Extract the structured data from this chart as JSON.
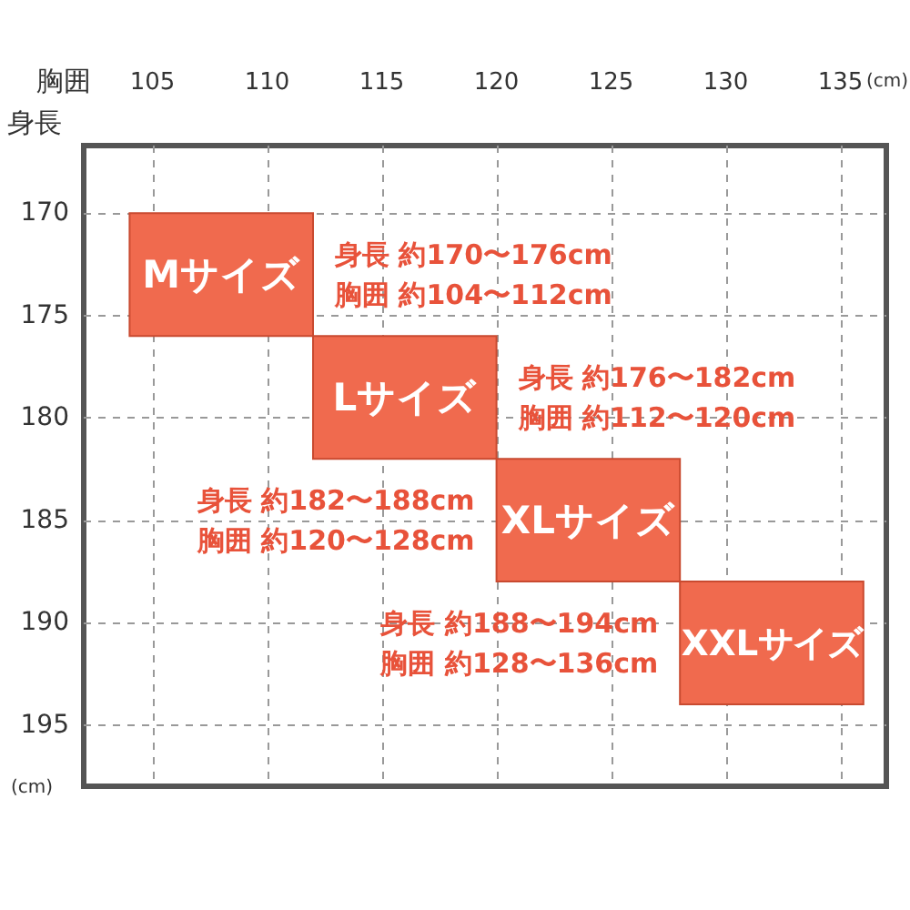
{
  "chart_data": {
    "type": "bar",
    "xlabel": "胸囲",
    "ylabel": "身長",
    "xlim": [
      102,
      137
    ],
    "ylim": [
      198,
      166.7
    ],
    "xticks": [
      105,
      110,
      115,
      120,
      125,
      130,
      135
    ],
    "yticks": [
      170,
      175,
      180,
      185,
      190,
      195
    ],
    "grid": true,
    "legend": false,
    "series": [
      {
        "name": "Mサイズ",
        "color": "#f06a4e",
        "x": [
          108
        ],
        "base": [
          170
        ],
        "values": [
          6
        ]
      },
      {
        "name": "Lサイズ",
        "color": "#f06a4e",
        "x": [
          116
        ],
        "base": [
          176
        ],
        "values": [
          6
        ]
      },
      {
        "name": "XLサイズ",
        "color": "#f06a4e",
        "x": [
          124
        ],
        "base": [
          182
        ],
        "values": [
          6
        ]
      },
      {
        "name": "XXLサイズ",
        "color": "#f06a4e",
        "x": [
          132
        ],
        "base": [
          188
        ],
        "values": [
          6
        ]
      }
    ],
    "annotations": [
      "身長 約170〜176cm",
      "胸囲 約104〜112cm",
      "身長 約176〜182cm",
      "胸囲 約112〜120cm",
      "身長 約182〜188cm",
      "胸囲 約120〜128cm",
      "身長 約188〜194cm",
      "胸囲 約128〜136cm",
      "(cm)",
      "(cm)"
    ]
  }
}
